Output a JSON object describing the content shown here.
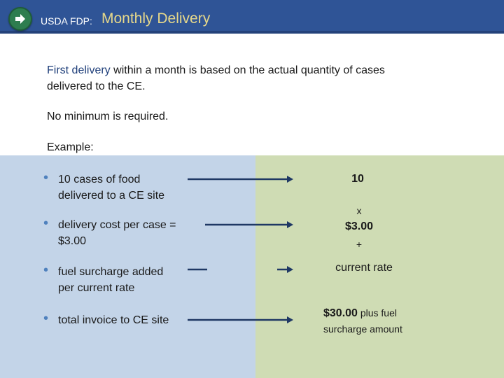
{
  "header": {
    "prefix": "USDA FDP:",
    "title": "Monthly Delivery",
    "logo_icon": "arrow-right-circle-icon"
  },
  "intro": {
    "highlight": "First delivery",
    "rest_line1": " within a month is based on the actual quantity of cases",
    "line2": "delivered to the CE.",
    "no_minimum": "No minimum is required.",
    "example_label": "Example:"
  },
  "example": {
    "items": [
      {
        "line1": "10 cases of food",
        "line2": "delivered to a CE site",
        "value": "10"
      },
      {
        "line1": "delivery cost per case  =",
        "line2": "$3.00",
        "operator_before": "x",
        "value": "$3.00",
        "operator_after": "+"
      },
      {
        "line1": "fuel surcharge added",
        "line2": "per current rate",
        "value": "current rate"
      },
      {
        "line1": "total invoice to CE site",
        "value_bold": "$30.00",
        "value_rest": " plus fuel",
        "value_line2": "surcharge amount"
      }
    ]
  },
  "colors": {
    "header_bg": "#2f5496",
    "title_accent": "#e6d88a",
    "panel_left": "#c3d4e8",
    "panel_right": "#cfdcb4",
    "arrow": "#1f3864",
    "bullet": "#4f81bd"
  }
}
